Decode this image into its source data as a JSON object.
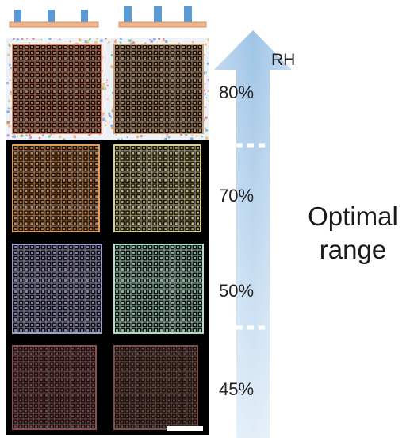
{
  "arrow_label": "RH",
  "humidity_levels": [
    "80%",
    "70%",
    "50%",
    "45%"
  ],
  "range_label": [
    "Optimal",
    "range"
  ],
  "colors": {
    "arrow": "#9ec4e6",
    "substrate": "#f0b48a",
    "pillar": "#5b9bd5",
    "background_photo": "#000000"
  },
  "panels": [
    {
      "level": "80%",
      "tint_left": "#d88a6a",
      "tint_right": "#c9a27a",
      "background": "speckled-white"
    },
    {
      "level": "70%",
      "tint_left": "#e09a5a",
      "tint_right": "#d8d090",
      "background": "black"
    },
    {
      "level": "50%",
      "tint_left": "#9aa0d0",
      "tint_right": "#a8e0c8",
      "background": "black"
    },
    {
      "level": "45%",
      "tint_left": "#8a5050",
      "tint_right": "#7a5048",
      "background": "black"
    }
  ]
}
